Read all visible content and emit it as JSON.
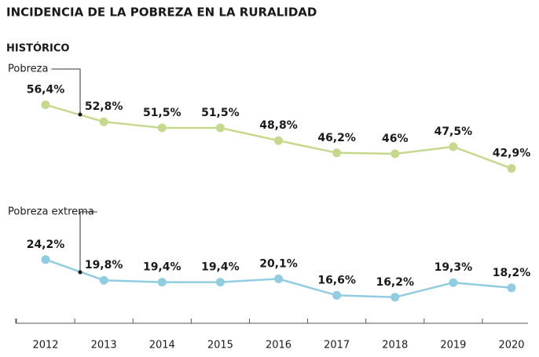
{
  "chart_data": [
    {
      "type": "line",
      "title": "INCIDENCIA DE LA POBREZA EN LA RURALIDAD",
      "subtitle": "HISTÓRICO",
      "categories": [
        "2012",
        "2013",
        "2014",
        "2015",
        "2016",
        "2017",
        "2018",
        "2019",
        "2020"
      ],
      "ylim": [
        38,
        62
      ],
      "series": [
        {
          "name": "Pobreza",
          "color": "#c5d98c",
          "values": [
            56.4,
            52.8,
            51.5,
            51.5,
            48.8,
            46.2,
            46,
            47.5,
            42.9
          ],
          "value_labels": [
            "56,4%",
            "52,8%",
            "51,5%",
            "51,5%",
            "48,8%",
            "46,2%",
            "46%",
            "47,5%",
            "42,9%"
          ]
        }
      ]
    },
    {
      "type": "line",
      "ylim": [
        11,
        31
      ],
      "series": [
        {
          "name": "Pobreza extrema",
          "color": "#90cde0",
          "values": [
            24.2,
            19.8,
            19.4,
            19.4,
            20.1,
            16.6,
            16.2,
            19.3,
            18.2
          ],
          "value_labels": [
            "24,2%",
            "19,8%",
            "19,4%",
            "19,4%",
            "20,1%",
            "16,6%",
            "16,2%",
            "19,3%",
            "18,2%"
          ]
        }
      ]
    }
  ]
}
